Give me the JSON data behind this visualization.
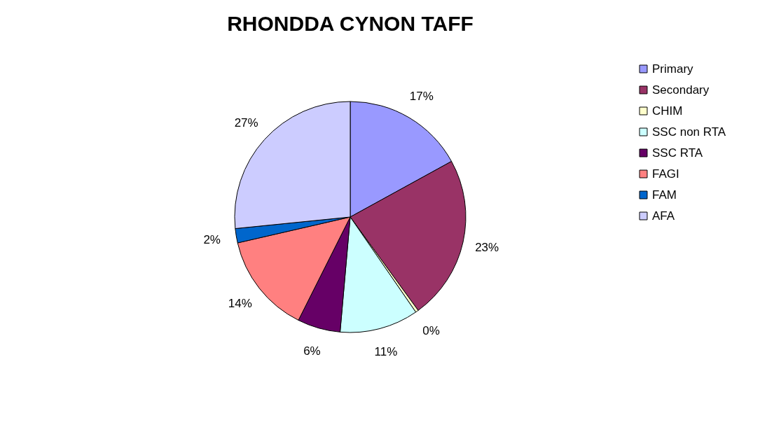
{
  "chart_data": {
    "type": "pie",
    "title": "RHONDDA CYNON TAFF",
    "categories": [
      "Primary",
      "Secondary",
      "CHIM",
      "SSC non RTA",
      "SSC RTA",
      "FAGI",
      "FAM",
      "AFA"
    ],
    "values": [
      17,
      23,
      0.4,
      11,
      6,
      14,
      2,
      26.6
    ],
    "value_labels": [
      "17%",
      "23%",
      "0%",
      "11%",
      "6%",
      "14%",
      "2%",
      "27%"
    ],
    "colors": [
      "#9999ff",
      "#993366",
      "#ffffcc",
      "#ccffff",
      "#660066",
      "#ff8080",
      "#0066cc",
      "#ccccff"
    ],
    "legend": "right"
  }
}
